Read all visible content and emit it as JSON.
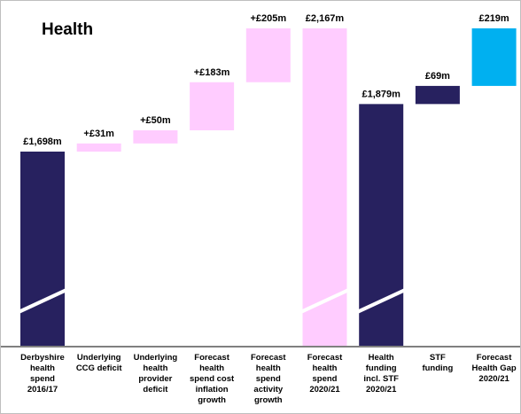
{
  "chart_data": {
    "type": "bar",
    "title": "Health",
    "categories": [
      "Derbyshire\nhealth\nspend\n2016/17",
      "Underlying\nCCG deficit",
      "Underlying\nhealth\nprovider\ndeficit",
      "Forecast\nhealth\nspend cost\ninflation\ngrowth",
      "Forecast\nhealth\nspend\nactivity\ngrowth",
      "Forecast\nhealth\nspend\n2020/21",
      "Health\nfunding\nincl. STF\n2020/21",
      "STF\nfunding",
      "Forecast\nHealth Gap\n2020/21"
    ],
    "bars": [
      {
        "base": 0,
        "top": 1698,
        "label": "£1,698m",
        "color": "#27215f",
        "broken": true
      },
      {
        "base": 1698,
        "top": 1729,
        "label": "+£31m",
        "color": "#ffccff",
        "broken": false
      },
      {
        "base": 1729,
        "top": 1779,
        "label": "+£50m",
        "color": "#ffccff",
        "broken": false
      },
      {
        "base": 1779,
        "top": 1962,
        "label": "+£183m",
        "color": "#ffccff",
        "broken": false
      },
      {
        "base": 1962,
        "top": 2167,
        "label": "+£205m",
        "color": "#ffccff",
        "broken": false
      },
      {
        "base": 0,
        "top": 2167,
        "label": "£2,167m",
        "color": "#ffccff",
        "broken": true
      },
      {
        "base": 0,
        "top": 1879,
        "label": "£1,879m",
        "color": "#27215f",
        "broken": true
      },
      {
        "base": 1879,
        "top": 1948,
        "label": "£69m",
        "color": "#27215f",
        "broken": false
      },
      {
        "base": 1948,
        "top": 2167,
        "label": "£219m",
        "color": "#00b0f0",
        "broken": false
      }
    ],
    "axis_break": true,
    "grid": false,
    "legend": "none"
  }
}
